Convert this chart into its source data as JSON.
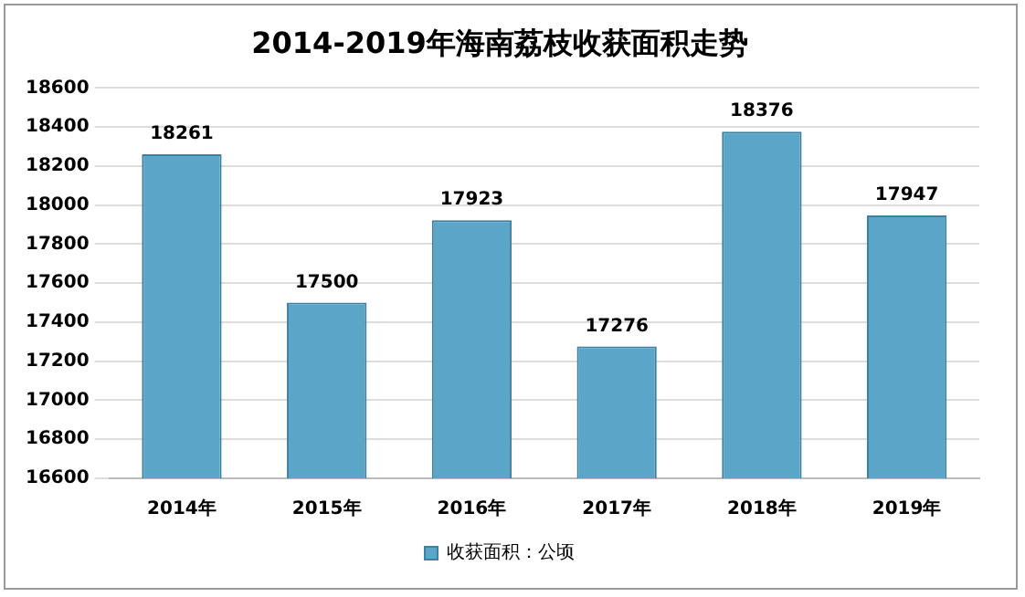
{
  "chart_data": {
    "type": "bar",
    "title": "2014-2019年海南荔枝收获面积走势",
    "categories": [
      "2014年",
      "2015年",
      "2016年",
      "2017年",
      "2018年",
      "2019年"
    ],
    "series": [
      {
        "name": "收获面积：公顷",
        "color": "#5aa5c8",
        "values": [
          18261,
          17500,
          17923,
          17276,
          18376,
          17947
        ]
      }
    ],
    "ylim": [
      16600,
      18600
    ],
    "yticks": [
      16600,
      16800,
      17000,
      17200,
      17400,
      17600,
      17800,
      18000,
      18200,
      18400,
      18600
    ],
    "grid": "y",
    "legend": "bottom",
    "data_labels": true
  }
}
